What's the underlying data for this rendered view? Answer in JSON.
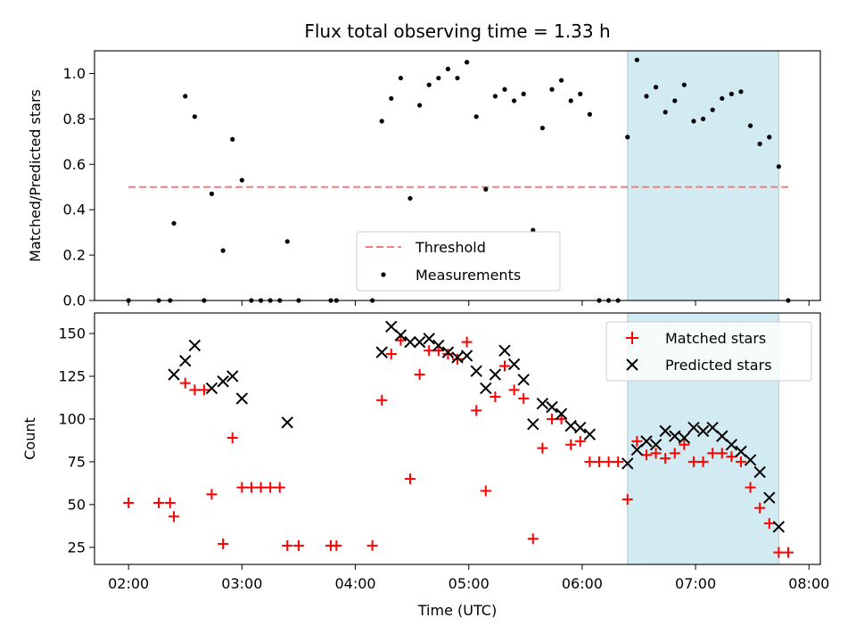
{
  "chart_data": [
    {
      "type": "scatter",
      "title": "Flux total observing time = 1.33 h",
      "xlabel": "",
      "ylabel": "Matched/Predicted stars",
      "ylim": [
        0,
        1.1
      ],
      "yticks": [
        "0.0",
        "0.2",
        "0.4",
        "0.6",
        "0.8",
        "1.0"
      ],
      "shaded_interval": [
        "06:24",
        "07:44"
      ],
      "shaded_color": "#add8e6",
      "threshold": {
        "name": "Threshold",
        "y": 0.5,
        "x_range": [
          "02:00",
          "07:50"
        ],
        "color": "#f08080"
      },
      "series": [
        {
          "name": "Measurements",
          "color": "#000000",
          "points": [
            [
              "02:00",
              0.0
            ],
            [
              "02:16",
              0.0
            ],
            [
              "02:22",
              0.0
            ],
            [
              "02:24",
              0.34
            ],
            [
              "02:30",
              0.9
            ],
            [
              "02:35",
              0.81
            ],
            [
              "02:40",
              0.0
            ],
            [
              "02:44",
              0.47
            ],
            [
              "02:50",
              0.22
            ],
            [
              "02:55",
              0.71
            ],
            [
              "03:00",
              0.53
            ],
            [
              "03:05",
              0.0
            ],
            [
              "03:10",
              0.0
            ],
            [
              "03:15",
              0.0
            ],
            [
              "03:20",
              0.0
            ],
            [
              "03:24",
              0.26
            ],
            [
              "03:30",
              0.0
            ],
            [
              "03:47",
              0.0
            ],
            [
              "03:50",
              0.0
            ],
            [
              "04:09",
              0.0
            ],
            [
              "04:14",
              0.79
            ],
            [
              "04:19",
              0.89
            ],
            [
              "04:24",
              0.98
            ],
            [
              "04:29",
              0.45
            ],
            [
              "04:34",
              0.86
            ],
            [
              "04:39",
              0.95
            ],
            [
              "04:44",
              0.98
            ],
            [
              "04:49",
              1.02
            ],
            [
              "04:54",
              0.98
            ],
            [
              "04:59",
              1.05
            ],
            [
              "05:04",
              0.81
            ],
            [
              "05:09",
              0.49
            ],
            [
              "05:14",
              0.9
            ],
            [
              "05:19",
              0.93
            ],
            [
              "05:24",
              0.88
            ],
            [
              "05:29",
              0.91
            ],
            [
              "05:34",
              0.31
            ],
            [
              "05:39",
              0.76
            ],
            [
              "05:44",
              0.93
            ],
            [
              "05:49",
              0.97
            ],
            [
              "05:54",
              0.88
            ],
            [
              "05:59",
              0.91
            ],
            [
              "06:04",
              0.82
            ],
            [
              "06:09",
              0.0
            ],
            [
              "06:14",
              0.0
            ],
            [
              "06:19",
              0.0
            ],
            [
              "06:24",
              0.72
            ],
            [
              "06:29",
              1.06
            ],
            [
              "06:34",
              0.9
            ],
            [
              "06:39",
              0.94
            ],
            [
              "06:44",
              0.83
            ],
            [
              "06:49",
              0.88
            ],
            [
              "06:54",
              0.95
            ],
            [
              "06:59",
              0.79
            ],
            [
              "07:04",
              0.8
            ],
            [
              "07:09",
              0.84
            ],
            [
              "07:14",
              0.89
            ],
            [
              "07:19",
              0.91
            ],
            [
              "07:24",
              0.92
            ],
            [
              "07:29",
              0.77
            ],
            [
              "07:34",
              0.69
            ],
            [
              "07:39",
              0.72
            ],
            [
              "07:44",
              0.59
            ],
            [
              "07:49",
              0.0
            ]
          ]
        }
      ],
      "legend": {
        "position": "bottom-center",
        "entries": [
          "Threshold",
          "Measurements"
        ]
      }
    },
    {
      "type": "scatter",
      "title": "",
      "xlabel": "Time (UTC)",
      "ylabel": "Count",
      "ylim": [
        15,
        162
      ],
      "yticks": [
        "25",
        "50",
        "75",
        "100",
        "125",
        "150"
      ],
      "xticks": [
        "02:00",
        "03:00",
        "04:00",
        "05:00",
        "06:00",
        "07:00",
        "08:00"
      ],
      "shaded_interval": [
        "06:24",
        "07:44"
      ],
      "series": [
        {
          "name": "Matched stars",
          "marker": "plus",
          "color": "#ff0000",
          "points": [
            [
              "02:00",
              51
            ],
            [
              "02:16",
              51
            ],
            [
              "02:22",
              51
            ],
            [
              "02:24",
              43
            ],
            [
              "02:30",
              121
            ],
            [
              "02:35",
              117
            ],
            [
              "02:40",
              117
            ],
            [
              "02:44",
              56
            ],
            [
              "02:50",
              27
            ],
            [
              "02:55",
              89
            ],
            [
              "03:00",
              60
            ],
            [
              "03:05",
              60
            ],
            [
              "03:10",
              60
            ],
            [
              "03:15",
              60
            ],
            [
              "03:20",
              60
            ],
            [
              "03:24",
              26
            ],
            [
              "03:30",
              26
            ],
            [
              "03:47",
              26
            ],
            [
              "03:50",
              26
            ],
            [
              "04:09",
              26
            ],
            [
              "04:14",
              111
            ],
            [
              "04:19",
              138
            ],
            [
              "04:24",
              146
            ],
            [
              "04:29",
              65
            ],
            [
              "04:34",
              126
            ],
            [
              "04:39",
              140
            ],
            [
              "04:44",
              140
            ],
            [
              "04:49",
              138
            ],
            [
              "04:54",
              135
            ],
            [
              "04:59",
              145
            ],
            [
              "05:04",
              105
            ],
            [
              "05:09",
              58
            ],
            [
              "05:14",
              113
            ],
            [
              "05:19",
              131
            ],
            [
              "05:24",
              117
            ],
            [
              "05:29",
              112
            ],
            [
              "05:34",
              30
            ],
            [
              "05:39",
              83
            ],
            [
              "05:44",
              100
            ],
            [
              "05:49",
              100
            ],
            [
              "05:54",
              85
            ],
            [
              "05:59",
              87
            ],
            [
              "06:04",
              75
            ],
            [
              "06:09",
              75
            ],
            [
              "06:14",
              75
            ],
            [
              "06:19",
              75
            ],
            [
              "06:24",
              53
            ],
            [
              "06:29",
              87
            ],
            [
              "06:34",
              79
            ],
            [
              "06:39",
              80
            ],
            [
              "06:44",
              77
            ],
            [
              "06:49",
              80
            ],
            [
              "06:54",
              85
            ],
            [
              "06:59",
              75
            ],
            [
              "07:04",
              75
            ],
            [
              "07:09",
              80
            ],
            [
              "07:14",
              80
            ],
            [
              "07:19",
              78
            ],
            [
              "07:24",
              75
            ],
            [
              "07:29",
              60
            ],
            [
              "07:34",
              48
            ],
            [
              "07:39",
              39
            ],
            [
              "07:44",
              22
            ],
            [
              "07:49",
              22
            ]
          ]
        },
        {
          "name": "Predicted stars",
          "marker": "x",
          "color": "#000000",
          "points": [
            [
              "02:24",
              126
            ],
            [
              "02:30",
              134
            ],
            [
              "02:35",
              143
            ],
            [
              "02:44",
              118
            ],
            [
              "02:50",
              122
            ],
            [
              "02:55",
              125
            ],
            [
              "03:00",
              112
            ],
            [
              "03:24",
              98
            ],
            [
              "04:14",
              139
            ],
            [
              "04:19",
              154
            ],
            [
              "04:24",
              149
            ],
            [
              "04:29",
              145
            ],
            [
              "04:34",
              145
            ],
            [
              "04:39",
              147
            ],
            [
              "04:44",
              143
            ],
            [
              "04:49",
              139
            ],
            [
              "04:54",
              136
            ],
            [
              "04:59",
              137
            ],
            [
              "05:04",
              128
            ],
            [
              "05:09",
              118
            ],
            [
              "05:14",
              126
            ],
            [
              "05:19",
              140
            ],
            [
              "05:24",
              132
            ],
            [
              "05:29",
              123
            ],
            [
              "05:34",
              97
            ],
            [
              "05:39",
              109
            ],
            [
              "05:44",
              107
            ],
            [
              "05:49",
              103
            ],
            [
              "05:54",
              96
            ],
            [
              "05:59",
              95
            ],
            [
              "06:04",
              91
            ],
            [
              "06:24",
              74
            ],
            [
              "06:29",
              82
            ],
            [
              "06:34",
              87
            ],
            [
              "06:39",
              85
            ],
            [
              "06:44",
              93
            ],
            [
              "06:49",
              90
            ],
            [
              "06:54",
              89
            ],
            [
              "06:59",
              95
            ],
            [
              "07:04",
              93
            ],
            [
              "07:09",
              95
            ],
            [
              "07:14",
              90
            ],
            [
              "07:19",
              85
            ],
            [
              "07:24",
              81
            ],
            [
              "07:29",
              76
            ],
            [
              "07:34",
              69
            ],
            [
              "07:39",
              54
            ],
            [
              "07:44",
              37
            ]
          ]
        }
      ],
      "legend": {
        "position": "top-right",
        "entries": [
          "Matched stars",
          "Predicted stars"
        ]
      }
    }
  ]
}
